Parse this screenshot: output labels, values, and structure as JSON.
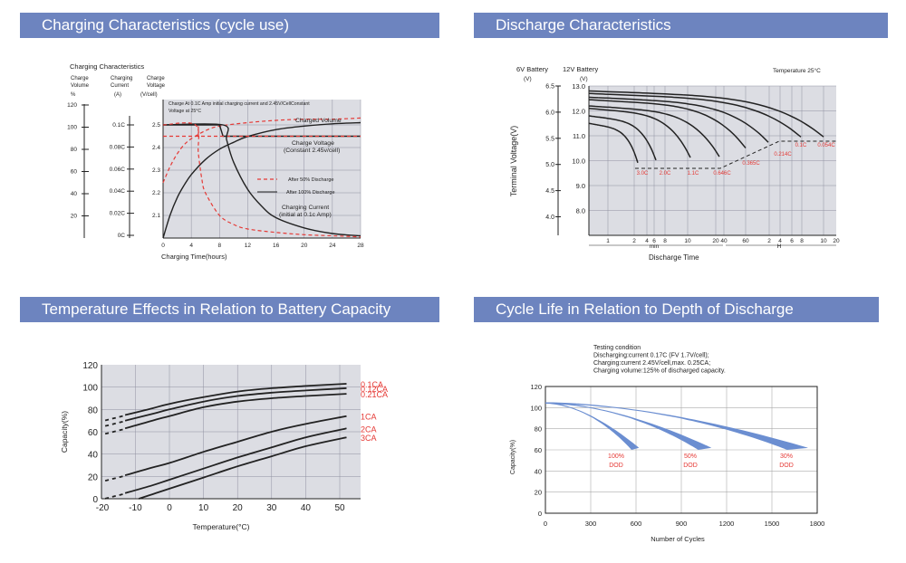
{
  "banners": {
    "charging": "Charging Characteristics (cycle use)",
    "discharge": "Discharge Characteristics",
    "temperature": "Temperature Effects in Relation to Battery Capacity",
    "cycle": "Cycle Life in Relation to Depth of Discharge"
  },
  "colors": {
    "banner": "#6d84bf",
    "grid_bg": "#dcdde3",
    "red": "#e53935",
    "cycle_fill": "#6b8ed1"
  },
  "chart_data": [
    {
      "type": "line",
      "title": "Charging Characteristics",
      "axis_headers": {
        "volume": "Charge\nVolume",
        "volume_unit": "%",
        "current": "Charging\nCurrent",
        "current_unit": "(A)",
        "voltage": "Charge\nVoltage",
        "voltage_unit": "(V/cell)"
      },
      "volume_ticks": [
        "120",
        "100",
        "80",
        "60",
        "40",
        "20"
      ],
      "current_ticks": [
        "0.1C",
        "0.08C",
        "0.06C",
        "0.04C",
        "0.02C",
        "0C"
      ],
      "voltage_ticks": [
        "2.5",
        "2.4",
        "2.3",
        "2.2",
        "2.1",
        "2.0"
      ],
      "x_ticks": [
        "0",
        "4",
        "8",
        "12",
        "16",
        "20",
        "24",
        "28"
      ],
      "xlabel": "Charging Time(hours)",
      "note_line1": "Charge At 0.1C Amp initial charging current and 2.45V/CellConstant",
      "note_line2": "Voltage  at 25°C",
      "labels": {
        "charged_volume": "Charged Volume",
        "charge_voltage_1": "Charge Voltage",
        "charge_voltage_2": "(Constant 2.45v/cell)",
        "charging_current_1": "Charging Current",
        "charging_current_2": "(initial at 0.1c Amp)"
      },
      "legend": [
        "After 50% Discharge",
        "After 100% Discharge"
      ],
      "series": [
        {
          "name": "Charged Volume (100%)",
          "x": [
            0,
            1,
            2,
            3,
            4,
            6,
            8,
            10,
            12,
            16,
            20,
            24,
            28
          ],
          "y": [
            0,
            20,
            35,
            46,
            55,
            68,
            77,
            83,
            88,
            94,
            97,
            99,
            100
          ]
        },
        {
          "name": "Charged Volume (50%)",
          "x": [
            0,
            1,
            2,
            3,
            4,
            6,
            8,
            12,
            16,
            20,
            24,
            28
          ],
          "y": [
            48,
            62,
            73,
            81,
            86,
            93,
            97,
            100,
            102,
            103,
            103,
            104
          ]
        },
        {
          "name": "Charge Voltage (100%)",
          "x": [
            0,
            8,
            8.5,
            28
          ],
          "y": [
            2.5,
            2.5,
            2.45,
            2.45
          ]
        },
        {
          "name": "Charge Voltage (50%)",
          "x": [
            0,
            5,
            28
          ],
          "y": [
            2.45,
            2.45,
            2.45
          ]
        },
        {
          "name": "Charging Current (100%)",
          "x": [
            0,
            8.5,
            9,
            10,
            12,
            14,
            16,
            20,
            24,
            28
          ],
          "y": [
            0.1,
            0.1,
            0.087,
            0.067,
            0.043,
            0.028,
            0.018,
            0.009,
            0.004,
            0.002
          ]
        },
        {
          "name": "Charging Current (50%)",
          "x": [
            0,
            4.6,
            5,
            5.5,
            6,
            8,
            10,
            12,
            16,
            20,
            24,
            28
          ],
          "y": [
            0.1,
            0.1,
            0.075,
            0.052,
            0.04,
            0.02,
            0.012,
            0.008,
            0.005,
            0.003,
            0.002,
            0.001
          ]
        }
      ]
    },
    {
      "type": "line",
      "title": "Discharge Characteristics",
      "ylabel": "Terminal Voltage(V)",
      "header_6v": "6V Battery",
      "header_12v": "12V Battery",
      "unit_v": "(V)",
      "temperature_note": "Temperature 25°C",
      "y_6v": [
        "6.5",
        "6.0",
        "5.5",
        "5.0",
        "4.5",
        "4.0"
      ],
      "y_12v": [
        "13.0",
        "12.0",
        "11.0",
        "10.0",
        "9.0",
        "8.0"
      ],
      "x_ticks": [
        "1",
        "2",
        "4",
        "6",
        "8",
        "10",
        "20",
        "40",
        "60",
        "2",
        "4",
        "6",
        "8",
        "10",
        "20"
      ],
      "min_label": "min",
      "h_label": "H",
      "xlabel": "Discharge Time",
      "rates": [
        "3.0C",
        "2.0C",
        "1.1C",
        "0.646C",
        "0.365C",
        "0.214C",
        "0.1C",
        "0.054C"
      ]
    },
    {
      "type": "line",
      "xlabel": "Temperature(°C)",
      "ylabel": "Capacity(%)",
      "x_ticks": [
        "-20",
        "-10",
        "0",
        "10",
        "20",
        "30",
        "40",
        "50"
      ],
      "y_ticks": [
        "120",
        "100",
        "80",
        "60",
        "40",
        "20",
        "0"
      ],
      "series": [
        {
          "name": "0.1CA",
          "x": [
            -13,
            -5,
            0,
            10,
            20,
            30,
            40,
            52
          ],
          "y": [
            75,
            81,
            85,
            91,
            96,
            99,
            101,
            103
          ]
        },
        {
          "name": "0.12CA",
          "x": [
            -13,
            -5,
            0,
            10,
            20,
            30,
            40,
            52
          ],
          "y": [
            70,
            76,
            80,
            87,
            92,
            95,
            97,
            99
          ]
        },
        {
          "name": "0.21CA",
          "x": [
            -13,
            -5,
            0,
            10,
            20,
            30,
            40,
            52
          ],
          "y": [
            63,
            70,
            74,
            82,
            87,
            90,
            92,
            94
          ]
        },
        {
          "name": "1CA",
          "x": [
            -13,
            -5,
            0,
            10,
            20,
            30,
            40,
            52
          ],
          "y": [
            21,
            28,
            32,
            42,
            51,
            60,
            67,
            74
          ]
        },
        {
          "name": "2CA",
          "x": [
            -13,
            -5,
            0,
            10,
            20,
            30,
            40,
            52
          ],
          "y": [
            5,
            12,
            17,
            27,
            37,
            46,
            55,
            63
          ]
        },
        {
          "name": "3CA",
          "x": [
            -9,
            -5,
            0,
            10,
            20,
            30,
            40,
            52
          ],
          "y": [
            0,
            4,
            9,
            19,
            29,
            38,
            47,
            55
          ]
        }
      ]
    },
    {
      "type": "area",
      "conditions": [
        "Testing condition",
        "Discharging:current 0.17C (FV 1.7V/cell);",
        "Charging:current 2.45V/cell,max. 0.25CA;",
        "Charging volume:125% of discharged capacity."
      ],
      "xlabel": "Number of Cycles",
      "ylabel": "Capacity(%)",
      "x_ticks": [
        "0",
        "300",
        "600",
        "900",
        "1200",
        "1500",
        "1800"
      ],
      "y_ticks": [
        "120",
        "100",
        "80",
        "60",
        "40",
        "20",
        "0"
      ],
      "series": [
        {
          "name": "100% DOD",
          "label": "100%",
          "sublabel": "DOD",
          "end_cycles": 620
        },
        {
          "name": "50% DOD",
          "label": "50%",
          "sublabel": "DOD",
          "end_cycles": 1100
        },
        {
          "name": "30% DOD",
          "label": "30%",
          "sublabel": "DOD",
          "end_cycles": 1740
        }
      ]
    }
  ]
}
